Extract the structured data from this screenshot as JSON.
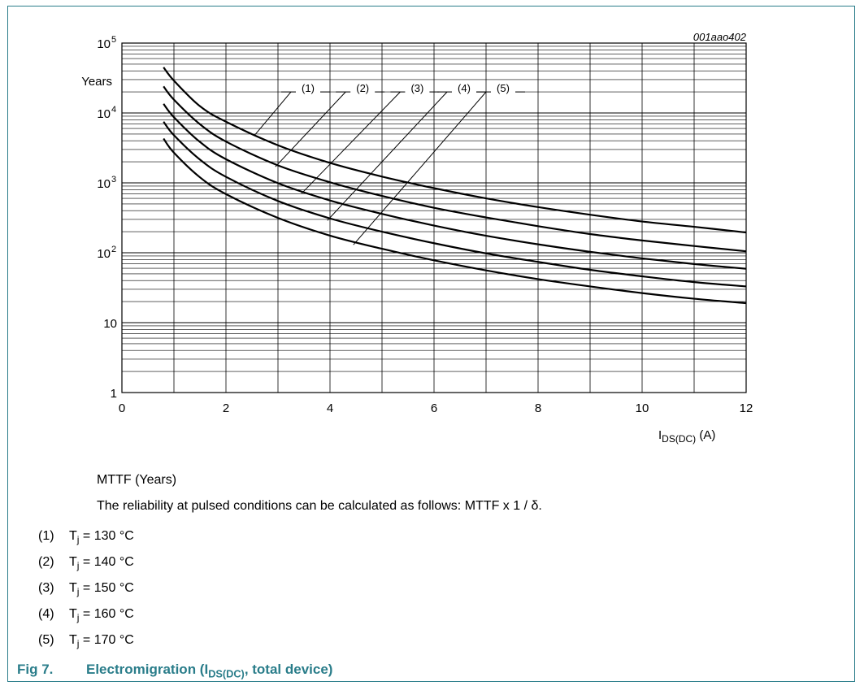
{
  "chart_data": {
    "type": "line",
    "id_label": "001aao402",
    "y_unit_label": "Years",
    "x_axis": {
      "label_main": "I",
      "label_sub": "DS(DC)",
      "label_unit": " (A)",
      "range": [
        0,
        12
      ],
      "ticks": [
        "0",
        "2",
        "4",
        "6",
        "8",
        "10",
        "12"
      ]
    },
    "y_axis": {
      "scale": "log",
      "range": [
        1,
        100000
      ],
      "ticks": [
        {
          "base": "1",
          "exp": ""
        },
        {
          "base": "10",
          "exp": ""
        },
        {
          "base": "10",
          "exp": "2"
        },
        {
          "base": "10",
          "exp": "3"
        },
        {
          "base": "10",
          "exp": "4"
        },
        {
          "base": "10",
          "exp": "5"
        }
      ]
    },
    "grid": true,
    "series": [
      {
        "name": "(1)",
        "x": [
          0.8,
          1.0,
          1.5,
          2,
          3,
          4,
          5,
          6,
          7,
          8,
          9,
          10,
          11,
          12
        ],
        "y": [
          45000,
          29000,
          12500,
          7500,
          3450,
          1930,
          1230,
          840,
          600,
          450,
          350,
          280,
          235,
          195
        ]
      },
      {
        "name": "(2)",
        "x": [
          0.8,
          1.0,
          1.5,
          2,
          3,
          4,
          5,
          6,
          7,
          8,
          9,
          10,
          11,
          12
        ],
        "y": [
          24000,
          15500,
          6900,
          3900,
          1780,
          1020,
          650,
          440,
          320,
          240,
          185,
          150,
          125,
          105
        ]
      },
      {
        "name": "(3)",
        "x": [
          0.8,
          1.0,
          1.5,
          2,
          3,
          4,
          5,
          6,
          7,
          8,
          9,
          10,
          11,
          12
        ],
        "y": [
          13500,
          8700,
          3850,
          2180,
          990,
          560,
          360,
          245,
          175,
          132,
          103,
          83,
          69,
          59
        ]
      },
      {
        "name": "(4)",
        "x": [
          0.8,
          1.0,
          1.5,
          2,
          3,
          4,
          5,
          6,
          7,
          8,
          9,
          10,
          11,
          12
        ],
        "y": [
          7500,
          4800,
          2150,
          1220,
          550,
          310,
          200,
          137,
          98,
          74,
          57,
          46,
          38,
          33
        ]
      },
      {
        "name": "(5)",
        "x": [
          0.8,
          1.0,
          1.5,
          2,
          3,
          4,
          5,
          6,
          7,
          8,
          9,
          10,
          11,
          12
        ],
        "y": [
          4300,
          2700,
          1200,
          690,
          315,
          176,
          114,
          78,
          56,
          42,
          33,
          26.5,
          22,
          19
        ]
      }
    ],
    "callouts": [
      {
        "label": "(1)",
        "line_from": [
          2.55,
          4800
        ],
        "line_to": [
          3.25,
          20000
        ]
      },
      {
        "label": "(2)",
        "line_from": [
          2.95,
          1700
        ],
        "line_to": [
          4.3,
          20000
        ]
      },
      {
        "label": "(3)",
        "line_from": [
          3.45,
          700
        ],
        "line_to": [
          5.35,
          20000
        ]
      },
      {
        "label": "(4)",
        "line_from": [
          3.95,
          290
        ],
        "line_to": [
          6.25,
          20000
        ]
      },
      {
        "label": "(5)",
        "line_from": [
          4.45,
          130
        ],
        "line_to": [
          7.0,
          20000
        ]
      }
    ]
  },
  "notes": {
    "mttf": "MTTF (Years)",
    "pulsed": "The reliability at pulsed conditions can be calculated as follows: MTTF x 1 / δ."
  },
  "legend": [
    {
      "num": "(1)",
      "sym": "T",
      "sub": "j",
      "rest": " = 130 °C"
    },
    {
      "num": "(2)",
      "sym": "T",
      "sub": "j",
      "rest": " = 140 °C"
    },
    {
      "num": "(3)",
      "sym": "T",
      "sub": "j",
      "rest": " = 150 °C"
    },
    {
      "num": "(4)",
      "sym": "T",
      "sub": "j",
      "rest": " = 160 °C"
    },
    {
      "num": "(5)",
      "sym": "T",
      "sub": "j",
      "rest": " = 170 °C"
    }
  ],
  "caption": {
    "fig": "Fig 7.",
    "title_pre": "Electromigration (I",
    "title_sub": "DS(DC)",
    "title_post": ", total device)"
  },
  "colors": {
    "frame": "#2a7d8a",
    "caption": "#2a7d8a",
    "curve": "#000000",
    "grid": "#000000"
  }
}
